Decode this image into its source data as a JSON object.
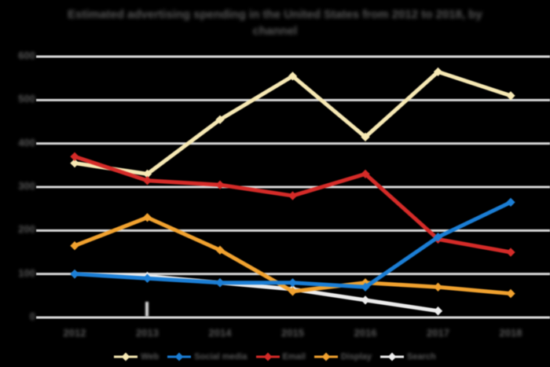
{
  "title": {
    "line1": "Estimated advertising spending in the United States from 2012 to 2018, by",
    "line2": "channel"
  },
  "colors": {
    "background": "#000000",
    "gridline": "#d8d8d8",
    "text": "#575757",
    "series_web": "#f7e9b4",
    "series_social": "#1b7ed5",
    "series_email": "#d52b28",
    "series_display": "#f1a22f",
    "series_search": "#ededed"
  },
  "chart_data": {
    "type": "line",
    "title": "Estimated advertising spending in the United States from 2012 to 2018, by channel",
    "x": [
      "2012",
      "2013",
      "2014",
      "2015",
      "2016",
      "2017",
      "2018"
    ],
    "series": [
      {
        "name": "Web",
        "color": "#f7e9b4",
        "marker": "diamond",
        "values": [
          355,
          330,
          455,
          555,
          415,
          565,
          510
        ]
      },
      {
        "name": "Social media",
        "color": "#1b7ed5",
        "marker": "diamond",
        "values": [
          100,
          90,
          80,
          80,
          70,
          185,
          265
        ]
      },
      {
        "name": "Email",
        "color": "#d52b28",
        "marker": "diamond",
        "values": [
          370,
          315,
          305,
          280,
          330,
          180,
          150
        ]
      },
      {
        "name": "Display",
        "color": "#f1a22f",
        "marker": "diamond",
        "values": [
          165,
          230,
          155,
          60,
          80,
          70,
          55
        ]
      },
      {
        "name": "Search",
        "color": "#ededed",
        "marker": "diamond",
        "values": [
          100,
          95,
          80,
          65,
          40,
          15,
          null
        ]
      }
    ],
    "xlabel": "",
    "ylabel": "",
    "yticks": [
      "600",
      "500",
      "400",
      "300",
      "200",
      "100",
      "0"
    ],
    "ylim": [
      0,
      600
    ],
    "grid": true,
    "legend_position": "bottom"
  }
}
